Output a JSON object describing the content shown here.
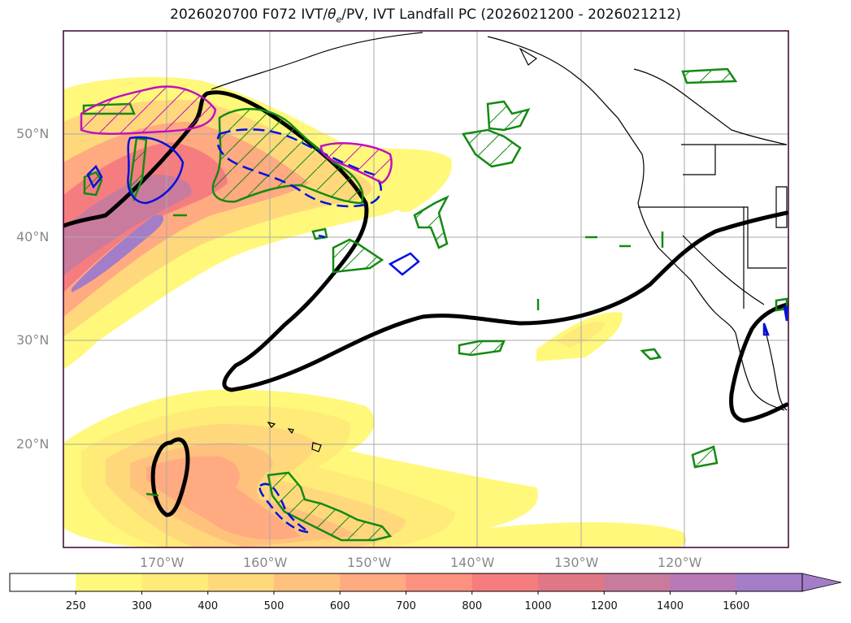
{
  "figure": {
    "title": "2026020700 F072 IVT/θe/PV, IVT Landfall PC (2026021200 - 2026021212)",
    "title_parts": {
      "before": "2026020700 F072 IVT/",
      "theta": "θ",
      "sub": "e",
      "after": "/PV, IVT Landfall PC (2026021200 - 2026021212)"
    }
  },
  "map": {
    "lat_labels": [
      "50°N",
      "40°N",
      "30°N",
      "20°N"
    ],
    "lon_labels": [
      "170°W",
      "160°W",
      "150°W",
      "140°W",
      "130°W",
      "120°W"
    ],
    "lat_range": [
      10,
      60
    ],
    "lon_range": [
      -180,
      -110
    ],
    "colors": {
      "frame": "#3a0030",
      "grid": "#aaaaaa",
      "tick_label": "#888888",
      "theta_e_contour": "#000000",
      "pv_green": "#138a13",
      "pv_blue": "#0010e0",
      "pv_magenta": "#c010c0"
    }
  },
  "colorbar": {
    "levels": [
      "250",
      "300",
      "400",
      "500",
      "600",
      "700",
      "800",
      "1000",
      "1200",
      "1400",
      "1600"
    ],
    "colors": [
      "#ffffff",
      "#fff87a",
      "#ffeb77",
      "#ffd87c",
      "#ffc27d",
      "#ffaa80",
      "#fb9280",
      "#f57d80",
      "#e07786",
      "#c97b9d",
      "#b87ab6",
      "#a37dc8"
    ],
    "extend": "max"
  }
}
